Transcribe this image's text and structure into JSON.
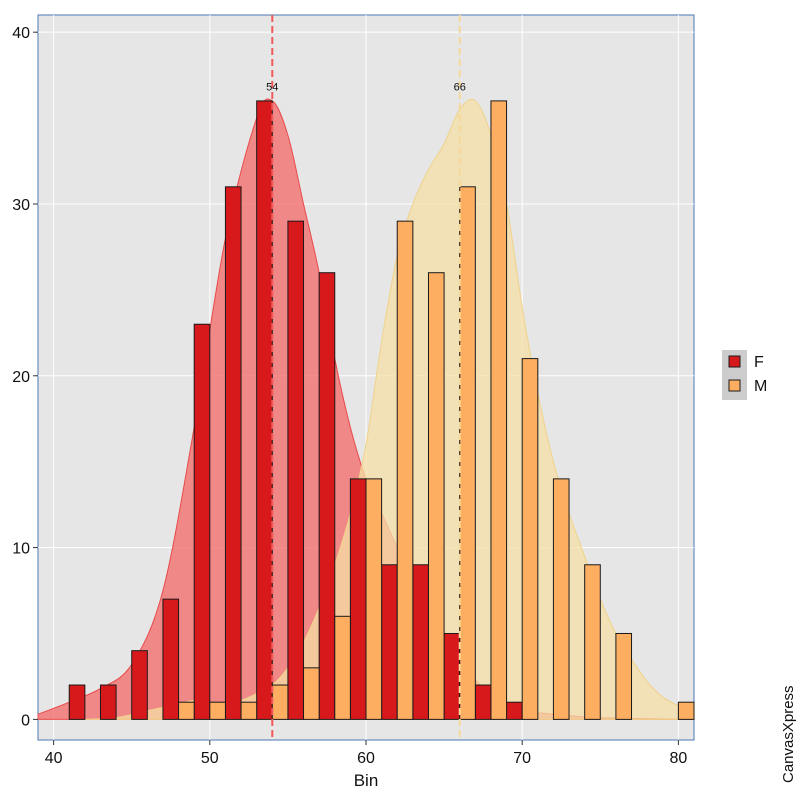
{
  "chart_data": {
    "type": "bar",
    "xlabel": "Bin",
    "ylabel": "",
    "xlim": [
      39,
      81
    ],
    "ylim": [
      -1.2,
      41
    ],
    "x_ticks": [
      40,
      50,
      60,
      70,
      80
    ],
    "y_ticks": [
      0,
      10,
      20,
      30,
      40
    ],
    "grid": true,
    "legend_position": "right",
    "watermark": "CanvasXpress",
    "series": [
      {
        "name": "F",
        "color": "#d7191c",
        "density_color": "#f46d6d",
        "bars": [
          {
            "x": 41.5,
            "y": 2
          },
          {
            "x": 43.5,
            "y": 2
          },
          {
            "x": 45.5,
            "y": 4
          },
          {
            "x": 47.5,
            "y": 7
          },
          {
            "x": 49.5,
            "y": 23
          },
          {
            "x": 51.5,
            "y": 31
          },
          {
            "x": 53.5,
            "y": 36
          },
          {
            "x": 55.5,
            "y": 29
          },
          {
            "x": 57.5,
            "y": 26
          },
          {
            "x": 59.5,
            "y": 14
          },
          {
            "x": 61.5,
            "y": 9
          },
          {
            "x": 63.5,
            "y": 9
          },
          {
            "x": 65.5,
            "y": 5
          },
          {
            "x": 67.5,
            "y": 2
          },
          {
            "x": 69.5,
            "y": 1
          }
        ],
        "density": [
          [
            39,
            0.3
          ],
          [
            41,
            1.0
          ],
          [
            43,
            1.8
          ],
          [
            45,
            3.2
          ],
          [
            47,
            7.5
          ],
          [
            49,
            17
          ],
          [
            51,
            28
          ],
          [
            53,
            35
          ],
          [
            54,
            36
          ],
          [
            55,
            34
          ],
          [
            56,
            30
          ],
          [
            57,
            26
          ],
          [
            58,
            21
          ],
          [
            59,
            17
          ],
          [
            60,
            14
          ],
          [
            61,
            12
          ],
          [
            62,
            10
          ],
          [
            63,
            8
          ],
          [
            64,
            6
          ],
          [
            65,
            4.5
          ],
          [
            66,
            3.2
          ],
          [
            67,
            2.3
          ],
          [
            68,
            1.4
          ],
          [
            69,
            0.8
          ],
          [
            70,
            0.5
          ],
          [
            72,
            0.3
          ],
          [
            75,
            0.1
          ],
          [
            81,
            0
          ]
        ],
        "reference_line": {
          "x": 54,
          "label": "54"
        }
      },
      {
        "name": "M",
        "color": "#fdae61",
        "density_color": "#f5dfa6",
        "bars": [
          {
            "x": 48.5,
            "y": 1
          },
          {
            "x": 50.5,
            "y": 1
          },
          {
            "x": 52.5,
            "y": 1
          },
          {
            "x": 54.5,
            "y": 2
          },
          {
            "x": 56.5,
            "y": 3
          },
          {
            "x": 58.5,
            "y": 6
          },
          {
            "x": 60.5,
            "y": 14
          },
          {
            "x": 62.5,
            "y": 29
          },
          {
            "x": 64.5,
            "y": 26
          },
          {
            "x": 66.5,
            "y": 31
          },
          {
            "x": 68.5,
            "y": 36
          },
          {
            "x": 70.5,
            "y": 21
          },
          {
            "x": 72.5,
            "y": 14
          },
          {
            "x": 74.5,
            "y": 9
          },
          {
            "x": 76.5,
            "y": 5
          },
          {
            "x": 80.5,
            "y": 1
          }
        ],
        "density": [
          [
            42,
            0
          ],
          [
            44,
            0.1
          ],
          [
            46,
            0.5
          ],
          [
            48,
            0.9
          ],
          [
            49,
            1.1
          ],
          [
            50,
            1.0
          ],
          [
            51,
            0.9
          ],
          [
            52,
            1.1
          ],
          [
            53,
            1.5
          ],
          [
            54,
            2.0
          ],
          [
            55,
            3.0
          ],
          [
            56,
            4.5
          ],
          [
            57,
            6.5
          ],
          [
            58,
            9.0
          ],
          [
            59,
            12
          ],
          [
            60,
            16
          ],
          [
            61,
            22
          ],
          [
            62,
            27
          ],
          [
            63,
            30
          ],
          [
            64,
            32
          ],
          [
            65,
            33.5
          ],
          [
            66,
            35.5
          ],
          [
            67,
            36
          ],
          [
            68,
            34
          ],
          [
            69,
            30
          ],
          [
            70,
            24
          ],
          [
            71,
            19
          ],
          [
            72,
            15
          ],
          [
            73,
            12
          ],
          [
            74,
            9.5
          ],
          [
            75,
            7
          ],
          [
            76,
            5
          ],
          [
            77,
            3.5
          ],
          [
            78,
            2.2
          ],
          [
            79,
            1.3
          ],
          [
            80,
            0.8
          ],
          [
            81,
            0.5
          ]
        ],
        "reference_line": {
          "x": 66,
          "label": "66"
        }
      }
    ]
  }
}
